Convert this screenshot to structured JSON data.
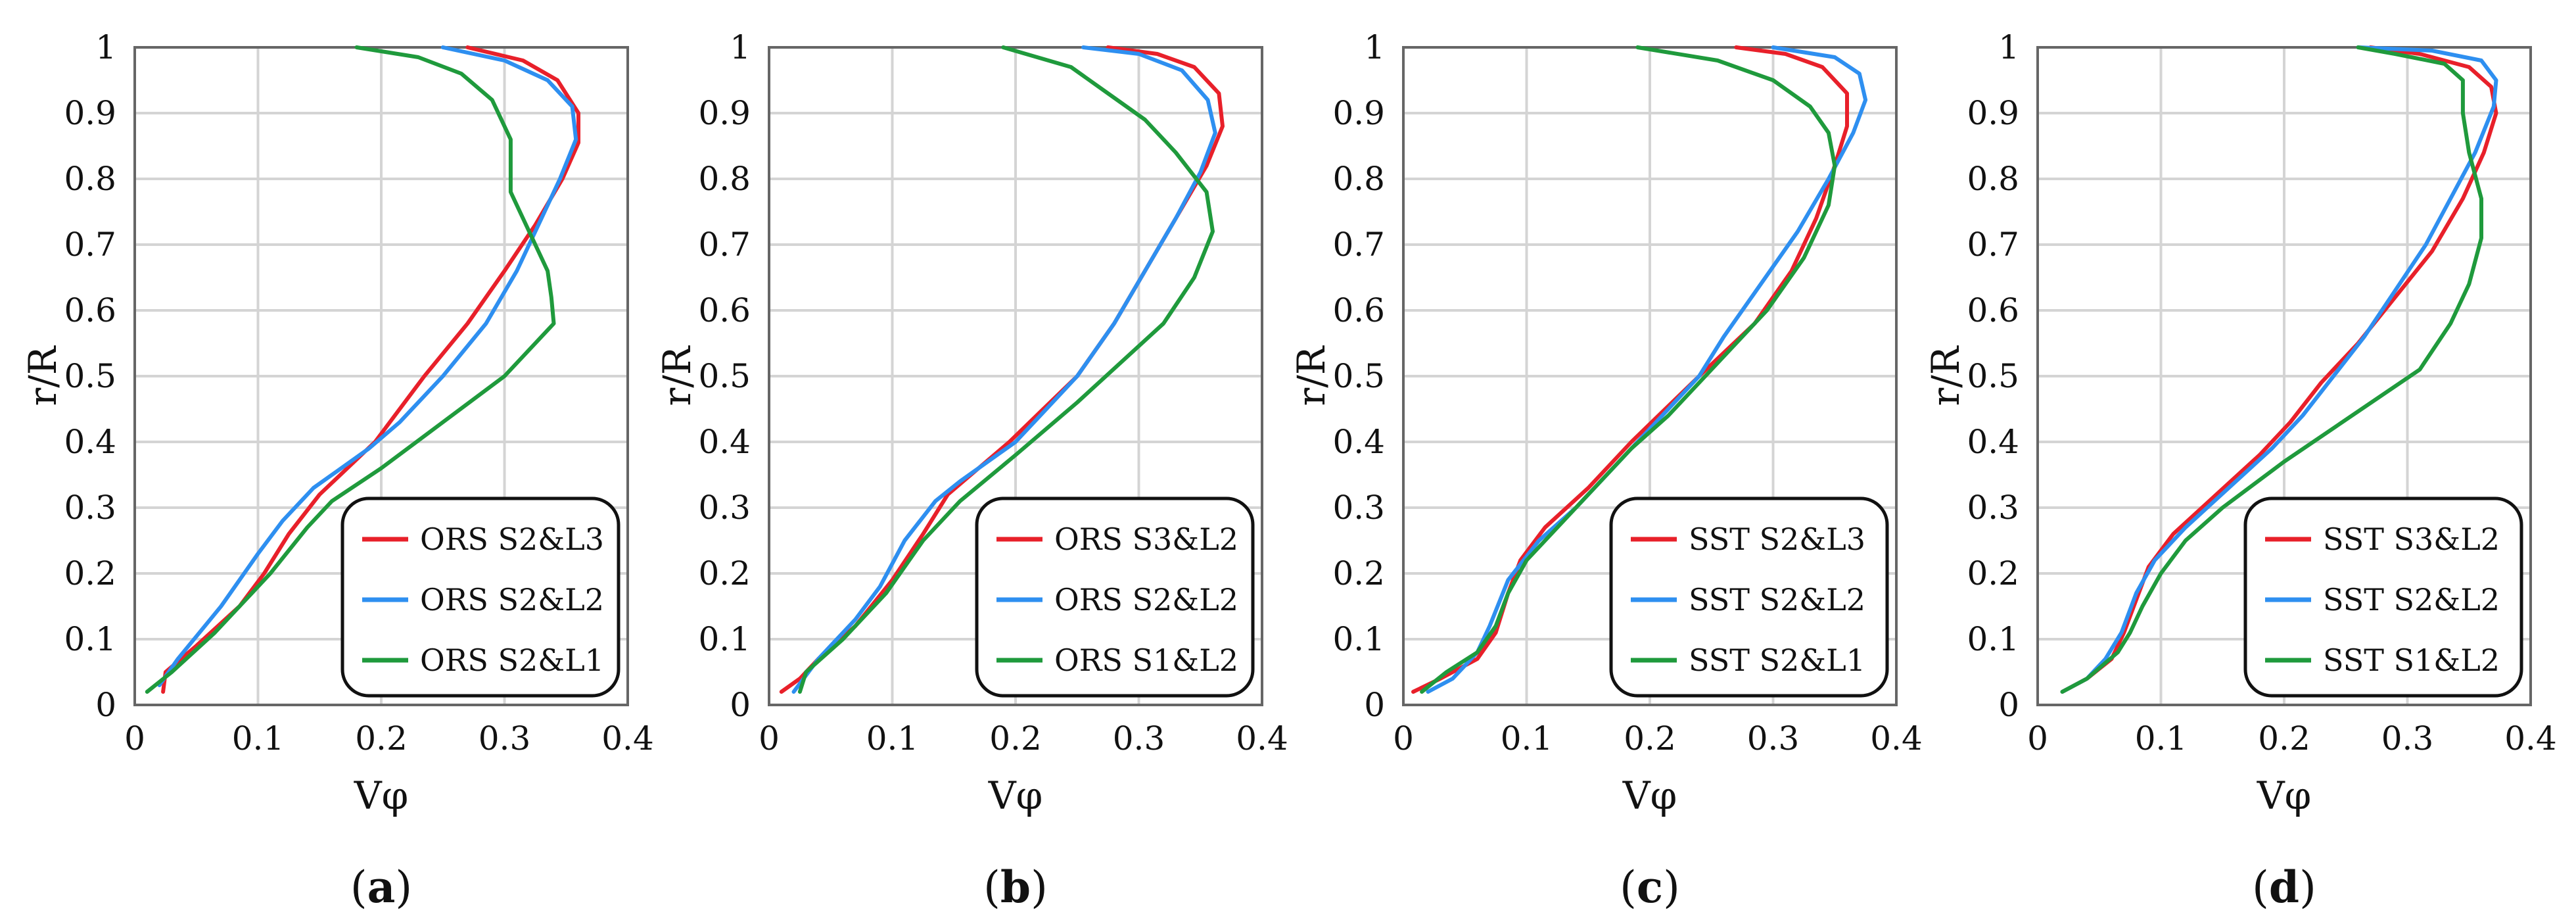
{
  "chart_data": [
    {
      "type": "line",
      "panel_label": "a",
      "xlabel": "Vφ",
      "ylabel": "r/R",
      "xlim": [
        0,
        0.4
      ],
      "ylim": [
        0,
        1
      ],
      "x_ticks": [
        "0",
        "0.1",
        "0.2",
        "0.3",
        "0.4"
      ],
      "y_ticks": [
        "0",
        "0.1",
        "0.2",
        "0.3",
        "0.4",
        "0.5",
        "0.6",
        "0.7",
        "0.8",
        "0.9",
        "1"
      ],
      "grid": true,
      "legend_position": "bottom-right",
      "series": [
        {
          "name": "ORS S2&L3",
          "color": "#e8202a",
          "points": [
            [
              0.023,
              0.02
            ],
            [
              0.025,
              0.05
            ],
            [
              0.05,
              0.09
            ],
            [
              0.085,
              0.15
            ],
            [
              0.105,
              0.2
            ],
            [
              0.125,
              0.26
            ],
            [
              0.15,
              0.32
            ],
            [
              0.195,
              0.4
            ],
            [
              0.235,
              0.5
            ],
            [
              0.27,
              0.58
            ],
            [
              0.3,
              0.66
            ],
            [
              0.325,
              0.73
            ],
            [
              0.347,
              0.8
            ],
            [
              0.36,
              0.855
            ],
            [
              0.36,
              0.9
            ],
            [
              0.343,
              0.95
            ],
            [
              0.315,
              0.98
            ],
            [
              0.27,
              1.0
            ]
          ]
        },
        {
          "name": "ORS S2&L2",
          "color": "#2e8ff0",
          "points": [
            [
              0.02,
              0.03
            ],
            [
              0.035,
              0.07
            ],
            [
              0.07,
              0.15
            ],
            [
              0.1,
              0.23
            ],
            [
              0.12,
              0.28
            ],
            [
              0.145,
              0.33
            ],
            [
              0.19,
              0.39
            ],
            [
              0.215,
              0.43
            ],
            [
              0.25,
              0.5
            ],
            [
              0.285,
              0.58
            ],
            [
              0.31,
              0.66
            ],
            [
              0.33,
              0.74
            ],
            [
              0.345,
              0.8
            ],
            [
              0.358,
              0.86
            ],
            [
              0.355,
              0.91
            ],
            [
              0.335,
              0.95
            ],
            [
              0.3,
              0.98
            ],
            [
              0.25,
              1.0
            ]
          ]
        },
        {
          "name": "ORS S2&L1",
          "color": "#1f9a3c",
          "points": [
            [
              0.01,
              0.02
            ],
            [
              0.03,
              0.05
            ],
            [
              0.065,
              0.11
            ],
            [
              0.11,
              0.2
            ],
            [
              0.14,
              0.27
            ],
            [
              0.16,
              0.31
            ],
            [
              0.2,
              0.36
            ],
            [
              0.25,
              0.43
            ],
            [
              0.3,
              0.5
            ],
            [
              0.34,
              0.58
            ],
            [
              0.338,
              0.62
            ],
            [
              0.335,
              0.66
            ],
            [
              0.32,
              0.72
            ],
            [
              0.305,
              0.78
            ],
            [
              0.305,
              0.86
            ],
            [
              0.29,
              0.92
            ],
            [
              0.265,
              0.96
            ],
            [
              0.23,
              0.985
            ],
            [
              0.18,
              1.0
            ]
          ]
        }
      ]
    },
    {
      "type": "line",
      "panel_label": "b",
      "xlabel": "Vφ",
      "ylabel": "r/R",
      "xlim": [
        0,
        0.4
      ],
      "ylim": [
        0,
        1
      ],
      "x_ticks": [
        "0",
        "0.1",
        "0.2",
        "0.3",
        "0.4"
      ],
      "y_ticks": [
        "0",
        "0.1",
        "0.2",
        "0.3",
        "0.4",
        "0.5",
        "0.6",
        "0.7",
        "0.8",
        "0.9",
        "1"
      ],
      "grid": true,
      "legend_position": "bottom-right",
      "series": [
        {
          "name": "ORS S3&L2",
          "color": "#e8202a",
          "points": [
            [
              0.01,
              0.02
            ],
            [
              0.025,
              0.04
            ],
            [
              0.04,
              0.07
            ],
            [
              0.07,
              0.12
            ],
            [
              0.1,
              0.19
            ],
            [
              0.125,
              0.26
            ],
            [
              0.145,
              0.32
            ],
            [
              0.195,
              0.4
            ],
            [
              0.25,
              0.5
            ],
            [
              0.28,
              0.58
            ],
            [
              0.305,
              0.66
            ],
            [
              0.33,
              0.74
            ],
            [
              0.355,
              0.82
            ],
            [
              0.368,
              0.88
            ],
            [
              0.365,
              0.93
            ],
            [
              0.345,
              0.97
            ],
            [
              0.315,
              0.99
            ],
            [
              0.275,
              1.0
            ]
          ]
        },
        {
          "name": "ORS S2&L2",
          "color": "#2e8ff0",
          "points": [
            [
              0.02,
              0.02
            ],
            [
              0.04,
              0.07
            ],
            [
              0.07,
              0.13
            ],
            [
              0.09,
              0.18
            ],
            [
              0.11,
              0.25
            ],
            [
              0.135,
              0.31
            ],
            [
              0.155,
              0.34
            ],
            [
              0.2,
              0.4
            ],
            [
              0.25,
              0.5
            ],
            [
              0.28,
              0.58
            ],
            [
              0.305,
              0.66
            ],
            [
              0.33,
              0.74
            ],
            [
              0.35,
              0.81
            ],
            [
              0.362,
              0.87
            ],
            [
              0.356,
              0.92
            ],
            [
              0.335,
              0.965
            ],
            [
              0.3,
              0.99
            ],
            [
              0.255,
              1.0
            ]
          ]
        },
        {
          "name": "ORS S1&L2",
          "color": "#1f9a3c",
          "points": [
            [
              0.025,
              0.02
            ],
            [
              0.03,
              0.05
            ],
            [
              0.06,
              0.1
            ],
            [
              0.095,
              0.17
            ],
            [
              0.125,
              0.25
            ],
            [
              0.155,
              0.31
            ],
            [
              0.2,
              0.38
            ],
            [
              0.25,
              0.46
            ],
            [
              0.32,
              0.58
            ],
            [
              0.345,
              0.65
            ],
            [
              0.36,
              0.72
            ],
            [
              0.355,
              0.78
            ],
            [
              0.33,
              0.84
            ],
            [
              0.305,
              0.89
            ],
            [
              0.275,
              0.93
            ],
            [
              0.245,
              0.97
            ],
            [
              0.19,
              1.0
            ]
          ]
        }
      ]
    },
    {
      "type": "line",
      "panel_label": "c",
      "xlabel": "Vφ",
      "ylabel": "r/R",
      "xlim": [
        0,
        0.4
      ],
      "ylim": [
        0,
        1
      ],
      "x_ticks": [
        "0",
        "0.1",
        "0.2",
        "0.3",
        "0.4"
      ],
      "y_ticks": [
        "0",
        "0.1",
        "0.2",
        "0.3",
        "0.4",
        "0.5",
        "0.6",
        "0.7",
        "0.8",
        "0.9",
        "1"
      ],
      "grid": true,
      "legend_position": "bottom-right",
      "series": [
        {
          "name": "SST S2&L3",
          "color": "#e8202a",
          "points": [
            [
              0.008,
              0.02
            ],
            [
              0.03,
              0.04
            ],
            [
              0.06,
              0.07
            ],
            [
              0.075,
              0.11
            ],
            [
              0.085,
              0.17
            ],
            [
              0.095,
              0.22
            ],
            [
              0.115,
              0.27
            ],
            [
              0.15,
              0.33
            ],
            [
              0.185,
              0.4
            ],
            [
              0.24,
              0.5
            ],
            [
              0.285,
              0.58
            ],
            [
              0.315,
              0.66
            ],
            [
              0.335,
              0.74
            ],
            [
              0.35,
              0.82
            ],
            [
              0.36,
              0.88
            ],
            [
              0.36,
              0.93
            ],
            [
              0.34,
              0.97
            ],
            [
              0.31,
              0.99
            ],
            [
              0.27,
              1.0
            ]
          ]
        },
        {
          "name": "SST S2&L2",
          "color": "#2e8ff0",
          "points": [
            [
              0.02,
              0.02
            ],
            [
              0.04,
              0.04
            ],
            [
              0.06,
              0.08
            ],
            [
              0.07,
              0.12
            ],
            [
              0.085,
              0.19
            ],
            [
              0.11,
              0.25
            ],
            [
              0.14,
              0.3
            ],
            [
              0.18,
              0.38
            ],
            [
              0.21,
              0.44
            ],
            [
              0.24,
              0.5
            ],
            [
              0.26,
              0.56
            ],
            [
              0.29,
              0.64
            ],
            [
              0.32,
              0.72
            ],
            [
              0.345,
              0.8
            ],
            [
              0.365,
              0.87
            ],
            [
              0.375,
              0.92
            ],
            [
              0.37,
              0.96
            ],
            [
              0.35,
              0.985
            ],
            [
              0.3,
              1.0
            ]
          ]
        },
        {
          "name": "SST S2&L1",
          "color": "#1f9a3c",
          "points": [
            [
              0.015,
              0.02
            ],
            [
              0.035,
              0.05
            ],
            [
              0.06,
              0.08
            ],
            [
              0.075,
              0.12
            ],
            [
              0.085,
              0.17
            ],
            [
              0.1,
              0.22
            ],
            [
              0.13,
              0.28
            ],
            [
              0.16,
              0.34
            ],
            [
              0.185,
              0.39
            ],
            [
              0.215,
              0.44
            ],
            [
              0.255,
              0.52
            ],
            [
              0.295,
              0.6
            ],
            [
              0.325,
              0.68
            ],
            [
              0.345,
              0.76
            ],
            [
              0.35,
              0.82
            ],
            [
              0.345,
              0.87
            ],
            [
              0.33,
              0.91
            ],
            [
              0.3,
              0.95
            ],
            [
              0.255,
              0.98
            ],
            [
              0.19,
              1.0
            ]
          ]
        }
      ]
    },
    {
      "type": "line",
      "panel_label": "d",
      "xlabel": "Vφ",
      "ylabel": "r/R",
      "xlim": [
        0,
        0.4
      ],
      "ylim": [
        0,
        1
      ],
      "x_ticks": [
        "0",
        "0.1",
        "0.2",
        "0.3",
        "0.4"
      ],
      "y_ticks": [
        "0",
        "0.1",
        "0.2",
        "0.3",
        "0.4",
        "0.5",
        "0.6",
        "0.7",
        "0.8",
        "0.9",
        "1"
      ],
      "grid": true,
      "legend_position": "bottom-right",
      "series": [
        {
          "name": "SST S3&L2",
          "color": "#e8202a",
          "points": [
            [
              0.02,
              0.02
            ],
            [
              0.04,
              0.04
            ],
            [
              0.06,
              0.07
            ],
            [
              0.07,
              0.11
            ],
            [
              0.08,
              0.16
            ],
            [
              0.09,
              0.21
            ],
            [
              0.11,
              0.26
            ],
            [
              0.145,
              0.32
            ],
            [
              0.18,
              0.38
            ],
            [
              0.205,
              0.43
            ],
            [
              0.23,
              0.49
            ],
            [
              0.26,
              0.55
            ],
            [
              0.29,
              0.62
            ],
            [
              0.32,
              0.69
            ],
            [
              0.345,
              0.77
            ],
            [
              0.362,
              0.84
            ],
            [
              0.372,
              0.9
            ],
            [
              0.368,
              0.94
            ],
            [
              0.35,
              0.97
            ],
            [
              0.31,
              0.99
            ],
            [
              0.27,
              1.0
            ]
          ]
        },
        {
          "name": "SST S2&L2",
          "color": "#2e8ff0",
          "points": [
            [
              0.02,
              0.02
            ],
            [
              0.04,
              0.04
            ],
            [
              0.055,
              0.07
            ],
            [
              0.068,
              0.11
            ],
            [
              0.08,
              0.17
            ],
            [
              0.095,
              0.22
            ],
            [
              0.12,
              0.27
            ],
            [
              0.155,
              0.33
            ],
            [
              0.19,
              0.39
            ],
            [
              0.215,
              0.44
            ],
            [
              0.24,
              0.5
            ],
            [
              0.265,
              0.56
            ],
            [
              0.29,
              0.63
            ],
            [
              0.315,
              0.7
            ],
            [
              0.335,
              0.77
            ],
            [
              0.355,
              0.84
            ],
            [
              0.37,
              0.91
            ],
            [
              0.372,
              0.95
            ],
            [
              0.36,
              0.98
            ],
            [
              0.32,
              0.995
            ],
            [
              0.26,
              1.0
            ]
          ]
        },
        {
          "name": "SST S1&L2",
          "color": "#1f9a3c",
          "points": [
            [
              0.02,
              0.02
            ],
            [
              0.04,
              0.04
            ],
            [
              0.065,
              0.08
            ],
            [
              0.075,
              0.11
            ],
            [
              0.085,
              0.15
            ],
            [
              0.1,
              0.2
            ],
            [
              0.12,
              0.25
            ],
            [
              0.15,
              0.3
            ],
            [
              0.2,
              0.37
            ],
            [
              0.255,
              0.44
            ],
            [
              0.31,
              0.51
            ],
            [
              0.335,
              0.58
            ],
            [
              0.35,
              0.64
            ],
            [
              0.36,
              0.71
            ],
            [
              0.36,
              0.77
            ],
            [
              0.35,
              0.84
            ],
            [
              0.345,
              0.9
            ],
            [
              0.345,
              0.95
            ],
            [
              0.33,
              0.975
            ],
            [
              0.29,
              0.99
            ],
            [
              0.26,
              1.0
            ]
          ]
        }
      ]
    }
  ]
}
